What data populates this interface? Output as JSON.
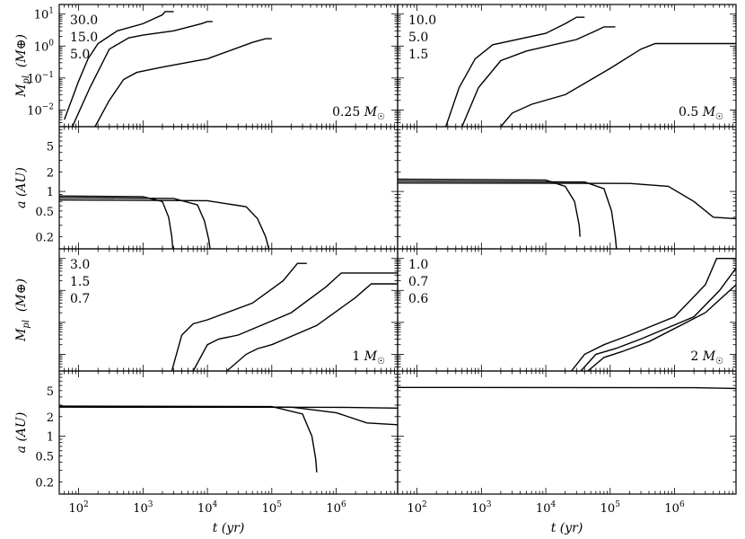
{
  "chart_data": {
    "type": "line",
    "layout": "4 rows x 2 columns, shared log x axis",
    "xlabel": "t  (yr)",
    "x_scale": "log",
    "xlim": [
      50,
      9000000
    ],
    "x_tick_values": [
      100,
      1000,
      10000,
      100000,
      1000000
    ],
    "x_tick_labels": [
      "10²",
      "10³",
      "10⁴",
      "10⁵",
      "10⁶"
    ],
    "grid": false,
    "legend": "none",
    "line_color": "#000000",
    "panels": [
      {
        "id": "mass-0.25",
        "ylabel": "M_pl  (M⊕)",
        "y_scale": "log",
        "ylim": [
          0.003,
          20
        ],
        "y_tick_values": [
          0.01,
          0.1,
          1,
          10
        ],
        "y_tick_labels": [
          "10⁻²",
          "10⁻¹",
          "10⁰",
          "10¹"
        ],
        "annotation": "0.25 M☉",
        "series_labels": [
          "30.0",
          "15.0",
          "5.0"
        ],
        "series": [
          {
            "x": [
              60,
              100,
              140,
              200,
              400,
              1000,
              2000,
              2200,
              3000
            ],
            "y": [
              0.005,
              0.08,
              0.4,
              1.2,
              3.0,
              5.0,
              9.5,
              12,
              12
            ]
          },
          {
            "x": [
              80,
              150,
              300,
              600,
              1000,
              3000,
              8000,
              10000,
              12000
            ],
            "y": [
              0.003,
              0.05,
              0.8,
              1.8,
              2.2,
              3.0,
              5.0,
              5.8,
              5.8
            ]
          },
          {
            "x": [
              180,
              300,
              500,
              800,
              2000,
              10000,
              50000,
              80000,
              100000
            ],
            "y": [
              0.003,
              0.02,
              0.09,
              0.15,
              0.22,
              0.4,
              1.3,
              1.7,
              1.7
            ]
          }
        ]
      },
      {
        "id": "mass-0.5",
        "ylabel": "",
        "y_scale": "log",
        "ylim": [
          0.003,
          20
        ],
        "annotation": "0.5 M☉",
        "series_labels": [
          "10.0",
          "5.0",
          "1.5"
        ],
        "series": [
          {
            "x": [
              280,
              450,
              800,
              1500,
              10000,
              20000,
              30000,
              40000
            ],
            "y": [
              0.003,
              0.05,
              0.4,
              1.1,
              2.5,
              5.0,
              8.0,
              8.0
            ]
          },
          {
            "x": [
              500,
              900,
              2000,
              5000,
              30000,
              60000,
              80000,
              120000
            ],
            "y": [
              0.003,
              0.05,
              0.35,
              0.7,
              1.6,
              3.0,
              4.0,
              4.0
            ]
          },
          {
            "x": [
              2000,
              3000,
              6000,
              20000,
              100000,
              300000,
              500000,
              1000000,
              9000000
            ],
            "y": [
              0.003,
              0.008,
              0.015,
              0.03,
              0.2,
              0.8,
              1.2,
              1.2,
              1.2
            ]
          }
        ]
      },
      {
        "id": "a-0.25",
        "ylabel": "a  (AU)",
        "y_scale": "log",
        "ylim": [
          0.13,
          10
        ],
        "y_tick_values": [
          0.2,
          0.5,
          1,
          2,
          5
        ],
        "y_tick_labels": [
          "0.2",
          "0.5",
          "1",
          "2",
          "5"
        ],
        "series": [
          {
            "x": [
              50,
              1000,
              2000,
              2500,
              2800,
              2900
            ],
            "y": [
              0.85,
              0.83,
              0.7,
              0.4,
              0.2,
              0.13
            ]
          },
          {
            "x": [
              50,
              3000,
              7000,
              9000,
              10500,
              11000
            ],
            "y": [
              0.8,
              0.78,
              0.62,
              0.35,
              0.18,
              0.13
            ]
          },
          {
            "x": [
              50,
              10000,
              40000,
              60000,
              80000,
              90000
            ],
            "y": [
              0.74,
              0.72,
              0.58,
              0.38,
              0.2,
              0.13
            ]
          }
        ]
      },
      {
        "id": "a-0.5",
        "ylabel": "",
        "y_scale": "log",
        "ylim": [
          0.13,
          10
        ],
        "series": [
          {
            "x": [
              50,
              10000,
              20000,
              28000,
              33000,
              34000
            ],
            "y": [
              1.55,
              1.5,
              1.2,
              0.7,
              0.3,
              0.2
            ]
          },
          {
            "x": [
              50,
              40000,
              80000,
              105000,
              120000,
              125000
            ],
            "y": [
              1.45,
              1.4,
              1.1,
              0.5,
              0.2,
              0.13
            ]
          },
          {
            "x": [
              50,
              200000,
              800000,
              2000000,
              4000000,
              9000000
            ],
            "y": [
              1.35,
              1.33,
              1.2,
              0.7,
              0.4,
              0.38
            ]
          }
        ]
      },
      {
        "id": "mass-1",
        "ylabel": "M_pl  (M⊕)",
        "y_scale": "log",
        "ylim": [
          0.003,
          20
        ],
        "annotation": "1 M☉",
        "series_labels": [
          "3.0",
          "1.5",
          "0.7"
        ],
        "series": [
          {
            "x": [
              2800,
              4000,
              6000,
              10000,
              50000,
              150000,
              250000,
              280000,
              350000
            ],
            "y": [
              0.003,
              0.04,
              0.09,
              0.12,
              0.4,
              2.0,
              7.0,
              7.0,
              7.0
            ]
          },
          {
            "x": [
              6000,
              10000,
              15000,
              30000,
              200000,
              700000,
              1200000,
              1500000,
              9000000
            ],
            "y": [
              0.003,
              0.02,
              0.03,
              0.04,
              0.2,
              1.3,
              3.5,
              3.5,
              3.5
            ]
          },
          {
            "x": [
              20000,
              40000,
              60000,
              100000,
              500000,
              2000000,
              3500000,
              9000000
            ],
            "y": [
              0.003,
              0.01,
              0.015,
              0.02,
              0.08,
              0.6,
              1.6,
              1.6
            ]
          }
        ]
      },
      {
        "id": "mass-2",
        "ylabel": "",
        "y_scale": "log",
        "ylim": [
          0.003,
          20
        ],
        "annotation": "2 M☉",
        "series_labels": [
          "1.0",
          "0.7",
          "0.6"
        ],
        "series": [
          {
            "x": [
              25000,
              40000,
              80000,
              200000,
              1000000,
              3000000,
              4500000,
              9000000
            ],
            "y": [
              0.003,
              0.01,
              0.02,
              0.04,
              0.15,
              1.5,
              10,
              10
            ]
          },
          {
            "x": [
              35000,
              60000,
              120000,
              300000,
              2000000,
              5000000,
              9000000
            ],
            "y": [
              0.003,
              0.01,
              0.015,
              0.03,
              0.15,
              1.0,
              5.0
            ]
          },
          {
            "x": [
              45000,
              80000,
              150000,
              400000,
              3000000,
              9000000
            ],
            "y": [
              0.003,
              0.008,
              0.012,
              0.025,
              0.2,
              1.5
            ]
          }
        ]
      },
      {
        "id": "a-1",
        "ylabel": "a  (AU)",
        "y_scale": "log",
        "ylim": [
          0.13,
          10
        ],
        "y_tick_values": [
          0.2,
          0.5,
          1,
          2,
          5
        ],
        "y_tick_labels": [
          "0.2",
          "0.5",
          "1",
          "2",
          "5"
        ],
        "series": [
          {
            "x": [
              50,
              100000,
              300000,
              420000,
              480000,
              500000
            ],
            "y": [
              2.9,
              2.85,
              2.2,
              1.0,
              0.45,
              0.28
            ]
          },
          {
            "x": [
              50,
              200000,
              1000000,
              3000000,
              9000000
            ],
            "y": [
              2.85,
              2.8,
              2.3,
              1.6,
              1.5
            ]
          },
          {
            "x": [
              50,
              1000000,
              9000000
            ],
            "y": [
              2.8,
              2.78,
              2.7
            ]
          }
        ]
      },
      {
        "id": "a-2",
        "ylabel": "",
        "y_scale": "log",
        "ylim": [
          0.13,
          10
        ],
        "series": [
          {
            "x": [
              50,
              2000000,
              9000000
            ],
            "y": [
              5.6,
              5.55,
              5.4
            ]
          }
        ]
      }
    ]
  }
}
